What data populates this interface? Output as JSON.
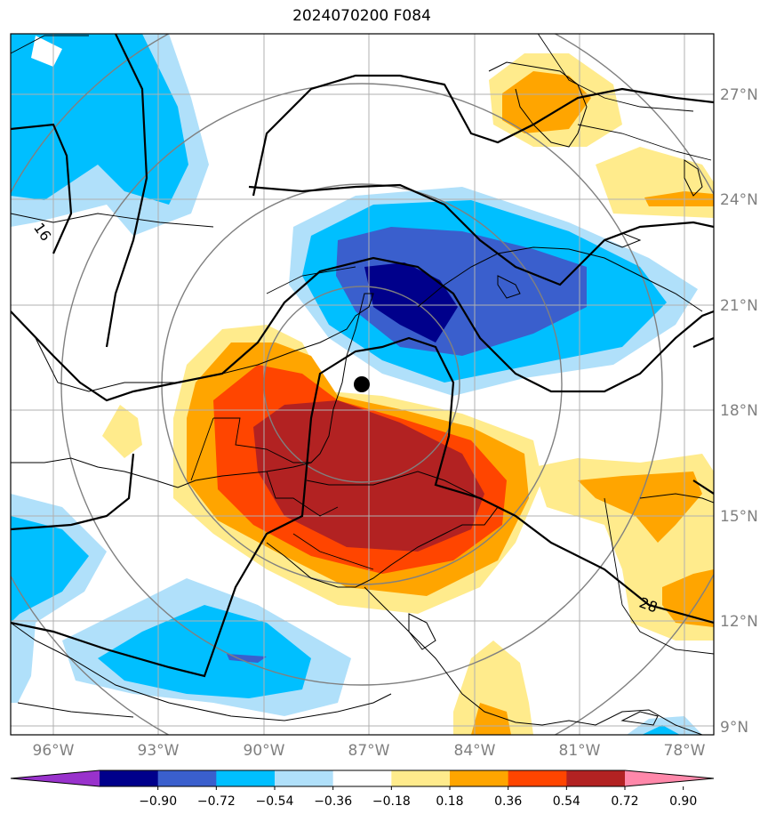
{
  "title": "2024070200 F084",
  "map": {
    "lat_labels": [
      "27°N",
      "24°N",
      "21°N",
      "18°N",
      "15°N",
      "12°N",
      "9°N"
    ],
    "lon_labels": [
      "96°W",
      "93°W",
      "90°W",
      "87°W",
      "84°W",
      "81°W",
      "78°W"
    ],
    "contour_labels": [
      "16",
      "28"
    ],
    "storm_marker": "storm-center-dot"
  },
  "colorbar": {
    "ticks": [
      "−0.90",
      "−0.72",
      "−0.54",
      "−0.36",
      "−0.18",
      "0.18",
      "0.36",
      "0.54",
      "0.72",
      "0.90"
    ],
    "colors": [
      "#9932cc",
      "#00008b",
      "#3a5fcd",
      "#00bfff",
      "#b0e0fa",
      "#ffffff",
      "#ffeb8c",
      "#ffa500",
      "#ff4500",
      "#b22222",
      "#ff88aa"
    ]
  }
}
